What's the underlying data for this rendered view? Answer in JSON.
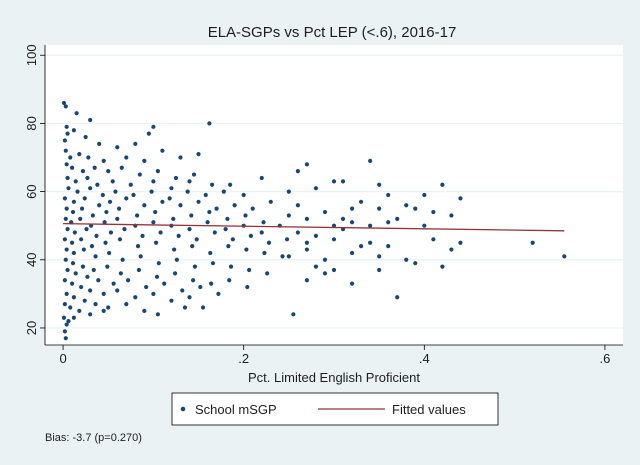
{
  "chart_data": {
    "type": "scatter",
    "title": "ELA-SGPs vs Pct LEP (<.6), 2016-17",
    "xlabel": "Pct. Limited English Proficient",
    "ylabel": "",
    "xlim": [
      -0.02,
      0.62
    ],
    "ylim": [
      15,
      103
    ],
    "x_ticks": [
      0,
      0.2,
      0.4,
      0.6
    ],
    "x_tick_labels": [
      "0",
      ".2",
      ".4",
      ".6"
    ],
    "y_ticks": [
      20,
      40,
      60,
      80,
      100
    ],
    "y_tick_labels": [
      "20",
      "40",
      "60",
      "80",
      "100"
    ],
    "grid": "horizontal",
    "legend_position": "bottom",
    "colors": {
      "points": "#1a476f",
      "fit": "#90353b",
      "frame_bg": "#eaf2f3",
      "plot_bg": "#ffffff"
    },
    "series": [
      {
        "name": "School mSGP",
        "kind": "scatter",
        "points": [
          [
            0.001,
            86
          ],
          [
            0.003,
            85
          ],
          [
            0.015,
            83
          ],
          [
            0.004,
            79
          ],
          [
            0.03,
            81
          ],
          [
            0.1,
            79
          ],
          [
            0.162,
            80
          ],
          [
            0.005,
            77
          ],
          [
            0.002,
            75
          ],
          [
            0.012,
            78
          ],
          [
            0.025,
            76
          ],
          [
            0.04,
            74
          ],
          [
            0.06,
            73
          ],
          [
            0.08,
            74
          ],
          [
            0.095,
            77
          ],
          [
            0.11,
            72
          ],
          [
            0.003,
            72
          ],
          [
            0.008,
            70
          ],
          [
            0.018,
            71
          ],
          [
            0.028,
            70
          ],
          [
            0.045,
            69
          ],
          [
            0.07,
            70
          ],
          [
            0.09,
            69
          ],
          [
            0.13,
            70
          ],
          [
            0.15,
            71
          ],
          [
            0.004,
            68
          ],
          [
            0.01,
            67
          ],
          [
            0.022,
            66
          ],
          [
            0.035,
            67
          ],
          [
            0.05,
            66
          ],
          [
            0.065,
            67
          ],
          [
            0.085,
            65
          ],
          [
            0.105,
            66
          ],
          [
            0.125,
            64
          ],
          [
            0.145,
            65
          ],
          [
            0.005,
            64
          ],
          [
            0.014,
            63
          ],
          [
            0.027,
            64
          ],
          [
            0.038,
            62
          ],
          [
            0.055,
            63
          ],
          [
            0.075,
            62
          ],
          [
            0.1,
            63
          ],
          [
            0.12,
            61
          ],
          [
            0.14,
            63
          ],
          [
            0.165,
            62
          ],
          [
            0.185,
            62
          ],
          [
            0.006,
            61
          ],
          [
            0.016,
            60
          ],
          [
            0.03,
            61
          ],
          [
            0.044,
            59
          ],
          [
            0.058,
            60
          ],
          [
            0.078,
            59
          ],
          [
            0.098,
            60
          ],
          [
            0.118,
            58
          ],
          [
            0.138,
            60
          ],
          [
            0.158,
            59
          ],
          [
            0.178,
            60
          ],
          [
            0.2,
            59
          ],
          [
            0.22,
            64
          ],
          [
            0.002,
            58
          ],
          [
            0.012,
            57
          ],
          [
            0.024,
            58
          ],
          [
            0.04,
            56
          ],
          [
            0.052,
            57
          ],
          [
            0.07,
            58
          ],
          [
            0.09,
            56
          ],
          [
            0.11,
            57
          ],
          [
            0.13,
            56
          ],
          [
            0.15,
            57
          ],
          [
            0.17,
            55
          ],
          [
            0.19,
            56
          ],
          [
            0.21,
            55
          ],
          [
            0.23,
            57
          ],
          [
            0.004,
            55
          ],
          [
            0.011,
            54
          ],
          [
            0.021,
            55
          ],
          [
            0.033,
            53
          ],
          [
            0.048,
            54
          ],
          [
            0.062,
            55
          ],
          [
            0.082,
            53
          ],
          [
            0.102,
            54
          ],
          [
            0.122,
            52
          ],
          [
            0.142,
            53
          ],
          [
            0.162,
            54
          ],
          [
            0.182,
            52
          ],
          [
            0.202,
            53
          ],
          [
            0.222,
            51
          ],
          [
            0.003,
            52
          ],
          [
            0.009,
            51
          ],
          [
            0.019,
            52
          ],
          [
            0.031,
            50
          ],
          [
            0.046,
            51
          ],
          [
            0.06,
            52
          ],
          [
            0.08,
            50
          ],
          [
            0.1,
            51
          ],
          [
            0.12,
            50
          ],
          [
            0.14,
            49
          ],
          [
            0.16,
            51
          ],
          [
            0.18,
            49
          ],
          [
            0.2,
            50
          ],
          [
            0.22,
            48
          ],
          [
            0.24,
            50
          ],
          [
            0.005,
            49
          ],
          [
            0.013,
            48
          ],
          [
            0.026,
            49
          ],
          [
            0.037,
            47
          ],
          [
            0.053,
            48
          ],
          [
            0.068,
            49
          ],
          [
            0.088,
            47
          ],
          [
            0.108,
            48
          ],
          [
            0.128,
            47
          ],
          [
            0.148,
            46
          ],
          [
            0.168,
            48
          ],
          [
            0.188,
            46
          ],
          [
            0.208,
            47
          ],
          [
            0.228,
            45
          ],
          [
            0.248,
            46
          ],
          [
            0.002,
            46
          ],
          [
            0.01,
            45
          ],
          [
            0.02,
            46
          ],
          [
            0.032,
            44
          ],
          [
            0.047,
            45
          ],
          [
            0.063,
            46
          ],
          [
            0.083,
            44
          ],
          [
            0.103,
            45
          ],
          [
            0.123,
            43
          ],
          [
            0.143,
            44
          ],
          [
            0.163,
            42
          ],
          [
            0.183,
            44
          ],
          [
            0.203,
            43
          ],
          [
            0.223,
            42
          ],
          [
            0.243,
            41
          ],
          [
            0.004,
            43
          ],
          [
            0.012,
            42
          ],
          [
            0.023,
            43
          ],
          [
            0.036,
            41
          ],
          [
            0.051,
            42
          ],
          [
            0.066,
            40
          ],
          [
            0.086,
            41
          ],
          [
            0.106,
            39
          ],
          [
            0.126,
            40
          ],
          [
            0.146,
            38
          ],
          [
            0.166,
            39
          ],
          [
            0.186,
            38
          ],
          [
            0.206,
            37
          ],
          [
            0.226,
            36
          ],
          [
            0.003,
            40
          ],
          [
            0.011,
            39
          ],
          [
            0.022,
            38
          ],
          [
            0.034,
            37
          ],
          [
            0.049,
            38
          ],
          [
            0.064,
            36
          ],
          [
            0.084,
            37
          ],
          [
            0.104,
            35
          ],
          [
            0.124,
            36
          ],
          [
            0.144,
            34
          ],
          [
            0.164,
            33
          ],
          [
            0.184,
            34
          ],
          [
            0.204,
            32
          ],
          [
            0.005,
            37
          ],
          [
            0.014,
            36
          ],
          [
            0.027,
            35
          ],
          [
            0.039,
            34
          ],
          [
            0.056,
            33
          ],
          [
            0.072,
            34
          ],
          [
            0.092,
            32
          ],
          [
            0.112,
            33
          ],
          [
            0.132,
            31
          ],
          [
            0.152,
            32
          ],
          [
            0.172,
            30
          ],
          [
            0.002,
            34
          ],
          [
            0.01,
            33
          ],
          [
            0.02,
            32
          ],
          [
            0.03,
            31
          ],
          [
            0.045,
            30
          ],
          [
            0.06,
            31
          ],
          [
            0.08,
            29
          ],
          [
            0.1,
            30
          ],
          [
            0.12,
            28
          ],
          [
            0.14,
            29
          ],
          [
            0.004,
            30
          ],
          [
            0.012,
            29
          ],
          [
            0.024,
            28
          ],
          [
            0.036,
            27
          ],
          [
            0.05,
            26
          ],
          [
            0.07,
            27
          ],
          [
            0.09,
            25
          ],
          [
            0.105,
            24
          ],
          [
            0.135,
            26
          ],
          [
            0.155,
            26
          ],
          [
            0.002,
            27
          ],
          [
            0.008,
            26
          ],
          [
            0.018,
            25
          ],
          [
            0.03,
            24
          ],
          [
            0.045,
            25
          ],
          [
            0.001,
            23
          ],
          [
            0.004,
            21
          ],
          [
            0.002,
            19
          ],
          [
            0.003,
            17
          ],
          [
            0.006,
            22
          ],
          [
            0.012,
            23
          ],
          [
            0.26,
            66
          ],
          [
            0.27,
            68
          ],
          [
            0.3,
            63
          ],
          [
            0.31,
            63
          ],
          [
            0.34,
            69
          ],
          [
            0.35,
            62
          ],
          [
            0.33,
            57
          ],
          [
            0.36,
            59
          ],
          [
            0.4,
            59
          ],
          [
            0.42,
            62
          ],
          [
            0.44,
            58
          ],
          [
            0.25,
            60
          ],
          [
            0.28,
            61
          ],
          [
            0.32,
            55
          ],
          [
            0.35,
            55
          ],
          [
            0.38,
            56
          ],
          [
            0.39,
            55
          ],
          [
            0.41,
            54
          ],
          [
            0.43,
            53
          ],
          [
            0.26,
            56
          ],
          [
            0.29,
            54
          ],
          [
            0.31,
            52
          ],
          [
            0.25,
            53
          ],
          [
            0.27,
            52
          ],
          [
            0.3,
            50
          ],
          [
            0.32,
            51
          ],
          [
            0.34,
            50
          ],
          [
            0.36,
            51
          ],
          [
            0.37,
            52
          ],
          [
            0.4,
            50
          ],
          [
            0.26,
            48
          ],
          [
            0.28,
            47
          ],
          [
            0.31,
            49
          ],
          [
            0.27,
            45
          ],
          [
            0.3,
            46
          ],
          [
            0.33,
            44
          ],
          [
            0.36,
            44
          ],
          [
            0.41,
            46
          ],
          [
            0.43,
            43
          ],
          [
            0.44,
            45
          ],
          [
            0.52,
            45
          ],
          [
            0.555,
            41
          ],
          [
            0.25,
            41
          ],
          [
            0.27,
            43
          ],
          [
            0.29,
            40
          ],
          [
            0.32,
            42
          ],
          [
            0.35,
            41
          ],
          [
            0.38,
            40
          ],
          [
            0.28,
            38
          ],
          [
            0.3,
            37
          ],
          [
            0.35,
            37
          ],
          [
            0.39,
            39
          ],
          [
            0.42,
            38
          ],
          [
            0.27,
            34
          ],
          [
            0.32,
            33
          ],
          [
            0.37,
            29
          ],
          [
            0.255,
            24
          ],
          [
            0.29,
            36
          ],
          [
            0.34,
            45
          ]
        ]
      },
      {
        "name": "Fitted values",
        "kind": "line",
        "x": [
          0,
          0.555
        ],
        "y": [
          50.6,
          48.5
        ]
      }
    ],
    "annotation": "Bias:  -3.7 (p=0.270)"
  }
}
